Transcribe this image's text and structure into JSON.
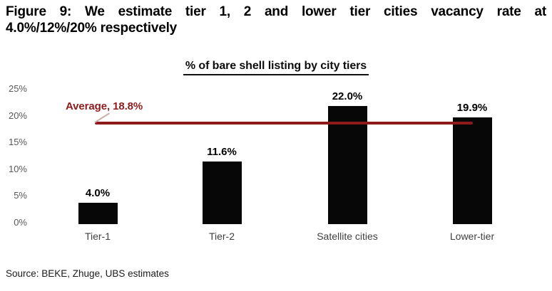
{
  "figure_title": {
    "line1": "Figure 9: We estimate tier 1, 2 and lower tier cities vacancy rate at",
    "line2": "4.0%/12%/20% respectively"
  },
  "chart_data": {
    "type": "bar",
    "title": "% of bare shell listing by city tiers",
    "categories": [
      "Tier-1",
      "Tier-2",
      "Satellite cities",
      "Lower-tier"
    ],
    "values": [
      4.0,
      11.6,
      22.0,
      19.9
    ],
    "value_labels": [
      "4.0%",
      "11.6%",
      "22.0%",
      "19.9%"
    ],
    "xlabel": "",
    "ylabel": "",
    "ylim": [
      0,
      25
    ],
    "yticks": [
      0,
      5,
      10,
      15,
      20,
      25
    ],
    "ytick_labels": [
      "0%",
      "5%",
      "10%",
      "15%",
      "20%",
      "25%"
    ],
    "grid": false,
    "legend": "none",
    "bar_color": "#070707",
    "average": {
      "label": "Average, 18.8%",
      "value": 18.8
    },
    "accent_color": "#8e1b1b"
  },
  "source": "Source: BEKE, Zhuge, UBS estimates"
}
